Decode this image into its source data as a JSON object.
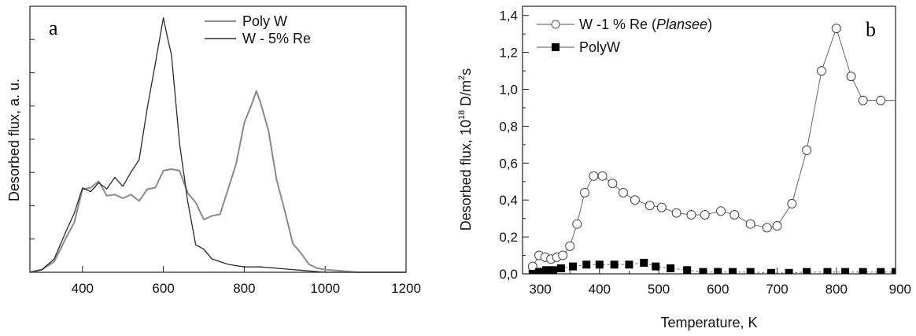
{
  "chart_data": [
    {
      "type": "line",
      "panel_label": "a",
      "ylabel": "Desorbed flux, a. u.",
      "xlabel": "",
      "xlim": [
        270,
        1200
      ],
      "xticks": [
        "400",
        "600",
        "800",
        "1000",
        "1200"
      ],
      "ylim": [
        0,
        1
      ],
      "y_tick_labels": false,
      "legend": {
        "placement": "top-right"
      },
      "series": [
        {
          "name": "Poly W",
          "color": "#8a8a8a",
          "x": [
            270,
            300,
            330,
            360,
            380,
            400,
            420,
            440,
            460,
            480,
            500,
            520,
            540,
            560,
            580,
            600,
            620,
            640,
            660,
            680,
            700,
            720,
            740,
            760,
            780,
            800,
            820,
            830,
            840,
            860,
            880,
            900,
            920,
            940,
            960,
            980,
            1000,
            1040,
            1080,
            1120,
            1160,
            1200
          ],
          "y": [
            0.0,
            0.01,
            0.04,
            0.12,
            0.2,
            0.3,
            0.33,
            0.33,
            0.3,
            0.28,
            0.29,
            0.28,
            0.28,
            0.3,
            0.33,
            0.37,
            0.4,
            0.37,
            0.31,
            0.25,
            0.21,
            0.2,
            0.23,
            0.3,
            0.42,
            0.55,
            0.65,
            0.67,
            0.65,
            0.52,
            0.36,
            0.22,
            0.12,
            0.06,
            0.03,
            0.015,
            0.01,
            0.005,
            0.0,
            0.0,
            0.0,
            0.0
          ]
        },
        {
          "name": "W - 5% Re",
          "color": "#2a2a2a",
          "x": [
            270,
            300,
            330,
            360,
            380,
            400,
            420,
            440,
            460,
            480,
            500,
            520,
            540,
            560,
            580,
            600,
            610,
            620,
            640,
            660,
            680,
            700,
            720,
            740,
            760,
            780,
            800,
            840,
            880,
            920,
            960,
            1000,
            1040,
            1080,
            1120,
            1200
          ],
          "y": [
            0.0,
            0.01,
            0.05,
            0.14,
            0.24,
            0.3,
            0.32,
            0.32,
            0.33,
            0.34,
            0.34,
            0.36,
            0.44,
            0.6,
            0.8,
            0.94,
            0.9,
            0.8,
            0.5,
            0.25,
            0.12,
            0.07,
            0.05,
            0.04,
            0.03,
            0.025,
            0.02,
            0.02,
            0.015,
            0.01,
            0.005,
            0.0,
            0.0,
            0.0,
            0.0,
            0.0
          ]
        }
      ]
    },
    {
      "type": "line",
      "panel_label": "b",
      "xlabel": "Temperature, K",
      "ylabel_parts": {
        "main": "Desorbed flux, 10",
        "exp1": "18",
        "mid": " D/m",
        "exp2": "2",
        "end": "s"
      },
      "xlim": [
        270,
        900
      ],
      "ylim": [
        0,
        1.45
      ],
      "xticks": [
        "300",
        "400",
        "500",
        "600",
        "700",
        "800",
        "900"
      ],
      "yticks": [
        "0,0",
        "0,2",
        "0,4",
        "0,6",
        "0,8",
        "1,0",
        "1,2",
        "1,4"
      ],
      "legend": {
        "placement": "top-left"
      },
      "series": [
        {
          "name_parts": {
            "plain": "W -1 % Re (",
            "italic": "Plansee",
            "close": ")"
          },
          "marker": "open-circle",
          "x": [
            287,
            298,
            308,
            318,
            328,
            338,
            350,
            362,
            375,
            390,
            405,
            422,
            440,
            460,
            485,
            505,
            530,
            555,
            578,
            605,
            628,
            655,
            683,
            700,
            725,
            750,
            775,
            800,
            825,
            845,
            875,
            900
          ],
          "y": [
            0.04,
            0.1,
            0.09,
            0.08,
            0.09,
            0.1,
            0.15,
            0.27,
            0.44,
            0.53,
            0.53,
            0.49,
            0.44,
            0.4,
            0.37,
            0.36,
            0.33,
            0.32,
            0.32,
            0.34,
            0.32,
            0.27,
            0.25,
            0.26,
            0.38,
            0.67,
            1.1,
            1.33,
            1.07,
            0.94,
            0.94,
            0.94
          ]
        },
        {
          "name": "PolyW",
          "marker": "filled-square",
          "x": [
            287,
            298,
            310,
            322,
            335,
            355,
            378,
            400,
            425,
            450,
            475,
            495,
            520,
            548,
            575,
            600,
            625,
            655,
            690,
            720,
            750,
            785,
            815,
            845,
            875,
            900
          ],
          "y": [
            0.0,
            0.01,
            0.02,
            0.02,
            0.03,
            0.04,
            0.05,
            0.05,
            0.05,
            0.05,
            0.06,
            0.04,
            0.03,
            0.02,
            0.01,
            0.01,
            0.01,
            0.01,
            0.005,
            0.005,
            0.01,
            0.01,
            0.01,
            0.01,
            0.01,
            0.01
          ]
        }
      ]
    }
  ]
}
